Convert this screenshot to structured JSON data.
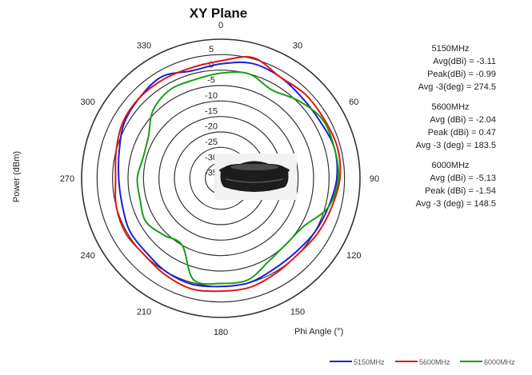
{
  "chart_data": {
    "type": "polar-line",
    "title": "XY Plane",
    "r_axis_label": "Power (dBm)",
    "angle_axis_label": "Phi Angle (°)",
    "r_range": [
      -40,
      5
    ],
    "r_ticks": [
      "5",
      "0",
      "-5",
      "-10",
      "-15",
      "-20",
      "-25",
      "-30",
      "-35"
    ],
    "angle_ticks": [
      "0",
      "30",
      "60",
      "90",
      "120",
      "150",
      "180",
      "210",
      "240",
      "270",
      "300",
      "330"
    ],
    "colors": {
      "5150MHz": "#1f1fd0",
      "5600MHz": "#e01515",
      "6000MHz": "#16a016"
    },
    "legend": [
      "5150MHz",
      "5600MHz",
      "6000MHz"
    ],
    "legend_position": "bottom-right",
    "angles": [
      0,
      15,
      30,
      45,
      60,
      75,
      90,
      105,
      120,
      135,
      150,
      165,
      180,
      195,
      210,
      225,
      240,
      255,
      270,
      285,
      300,
      315,
      330,
      345
    ],
    "series": [
      {
        "name": "5150MHz",
        "values": [
          -3,
          -1.5,
          -2,
          -3,
          -3,
          -2,
          -2.5,
          -4,
          -5,
          -6,
          -6,
          -5,
          -5,
          -4.5,
          -5,
          -6,
          -6,
          -7,
          -7,
          -6,
          -4,
          -3,
          -2,
          -4
        ]
      },
      {
        "name": "5600MHz",
        "values": [
          -2,
          0.4,
          -2,
          -1.5,
          -1.5,
          -1,
          -1.5,
          -3,
          -4,
          -5,
          -4.5,
          -3.5,
          -3.5,
          -3,
          -4,
          -5,
          -4.5,
          -5,
          -6,
          -5,
          -3.5,
          -3,
          -3,
          -3
        ]
      },
      {
        "name": "6000MHz",
        "values": [
          -6,
          -5,
          -7,
          -4.5,
          -2,
          -2,
          -2,
          -4,
          -9,
          -10,
          -9,
          -6,
          -6,
          -6,
          -15,
          -14,
          -12,
          -13,
          -13,
          -14,
          -13,
          -9,
          -7,
          -7
        ]
      }
    ],
    "stats": [
      {
        "heading": "5150MHz",
        "lines": [
          "Avg(dBi) = -3.11",
          "Peak(dBi) = -0.99",
          "Avg -3(deg) = 274.5"
        ]
      },
      {
        "heading": "5600MHz",
        "lines": [
          "Avg (dBi) = -2.04",
          "Peak (dBi) = 0.47",
          "Avg -3 (deg) = 183.5"
        ]
      },
      {
        "heading": "6000MHz",
        "lines": [
          "Avg (dBi) = -5.13",
          "Peak (dBi) = -1.54",
          "Avg -3 (deg) = 148.5"
        ]
      }
    ]
  }
}
